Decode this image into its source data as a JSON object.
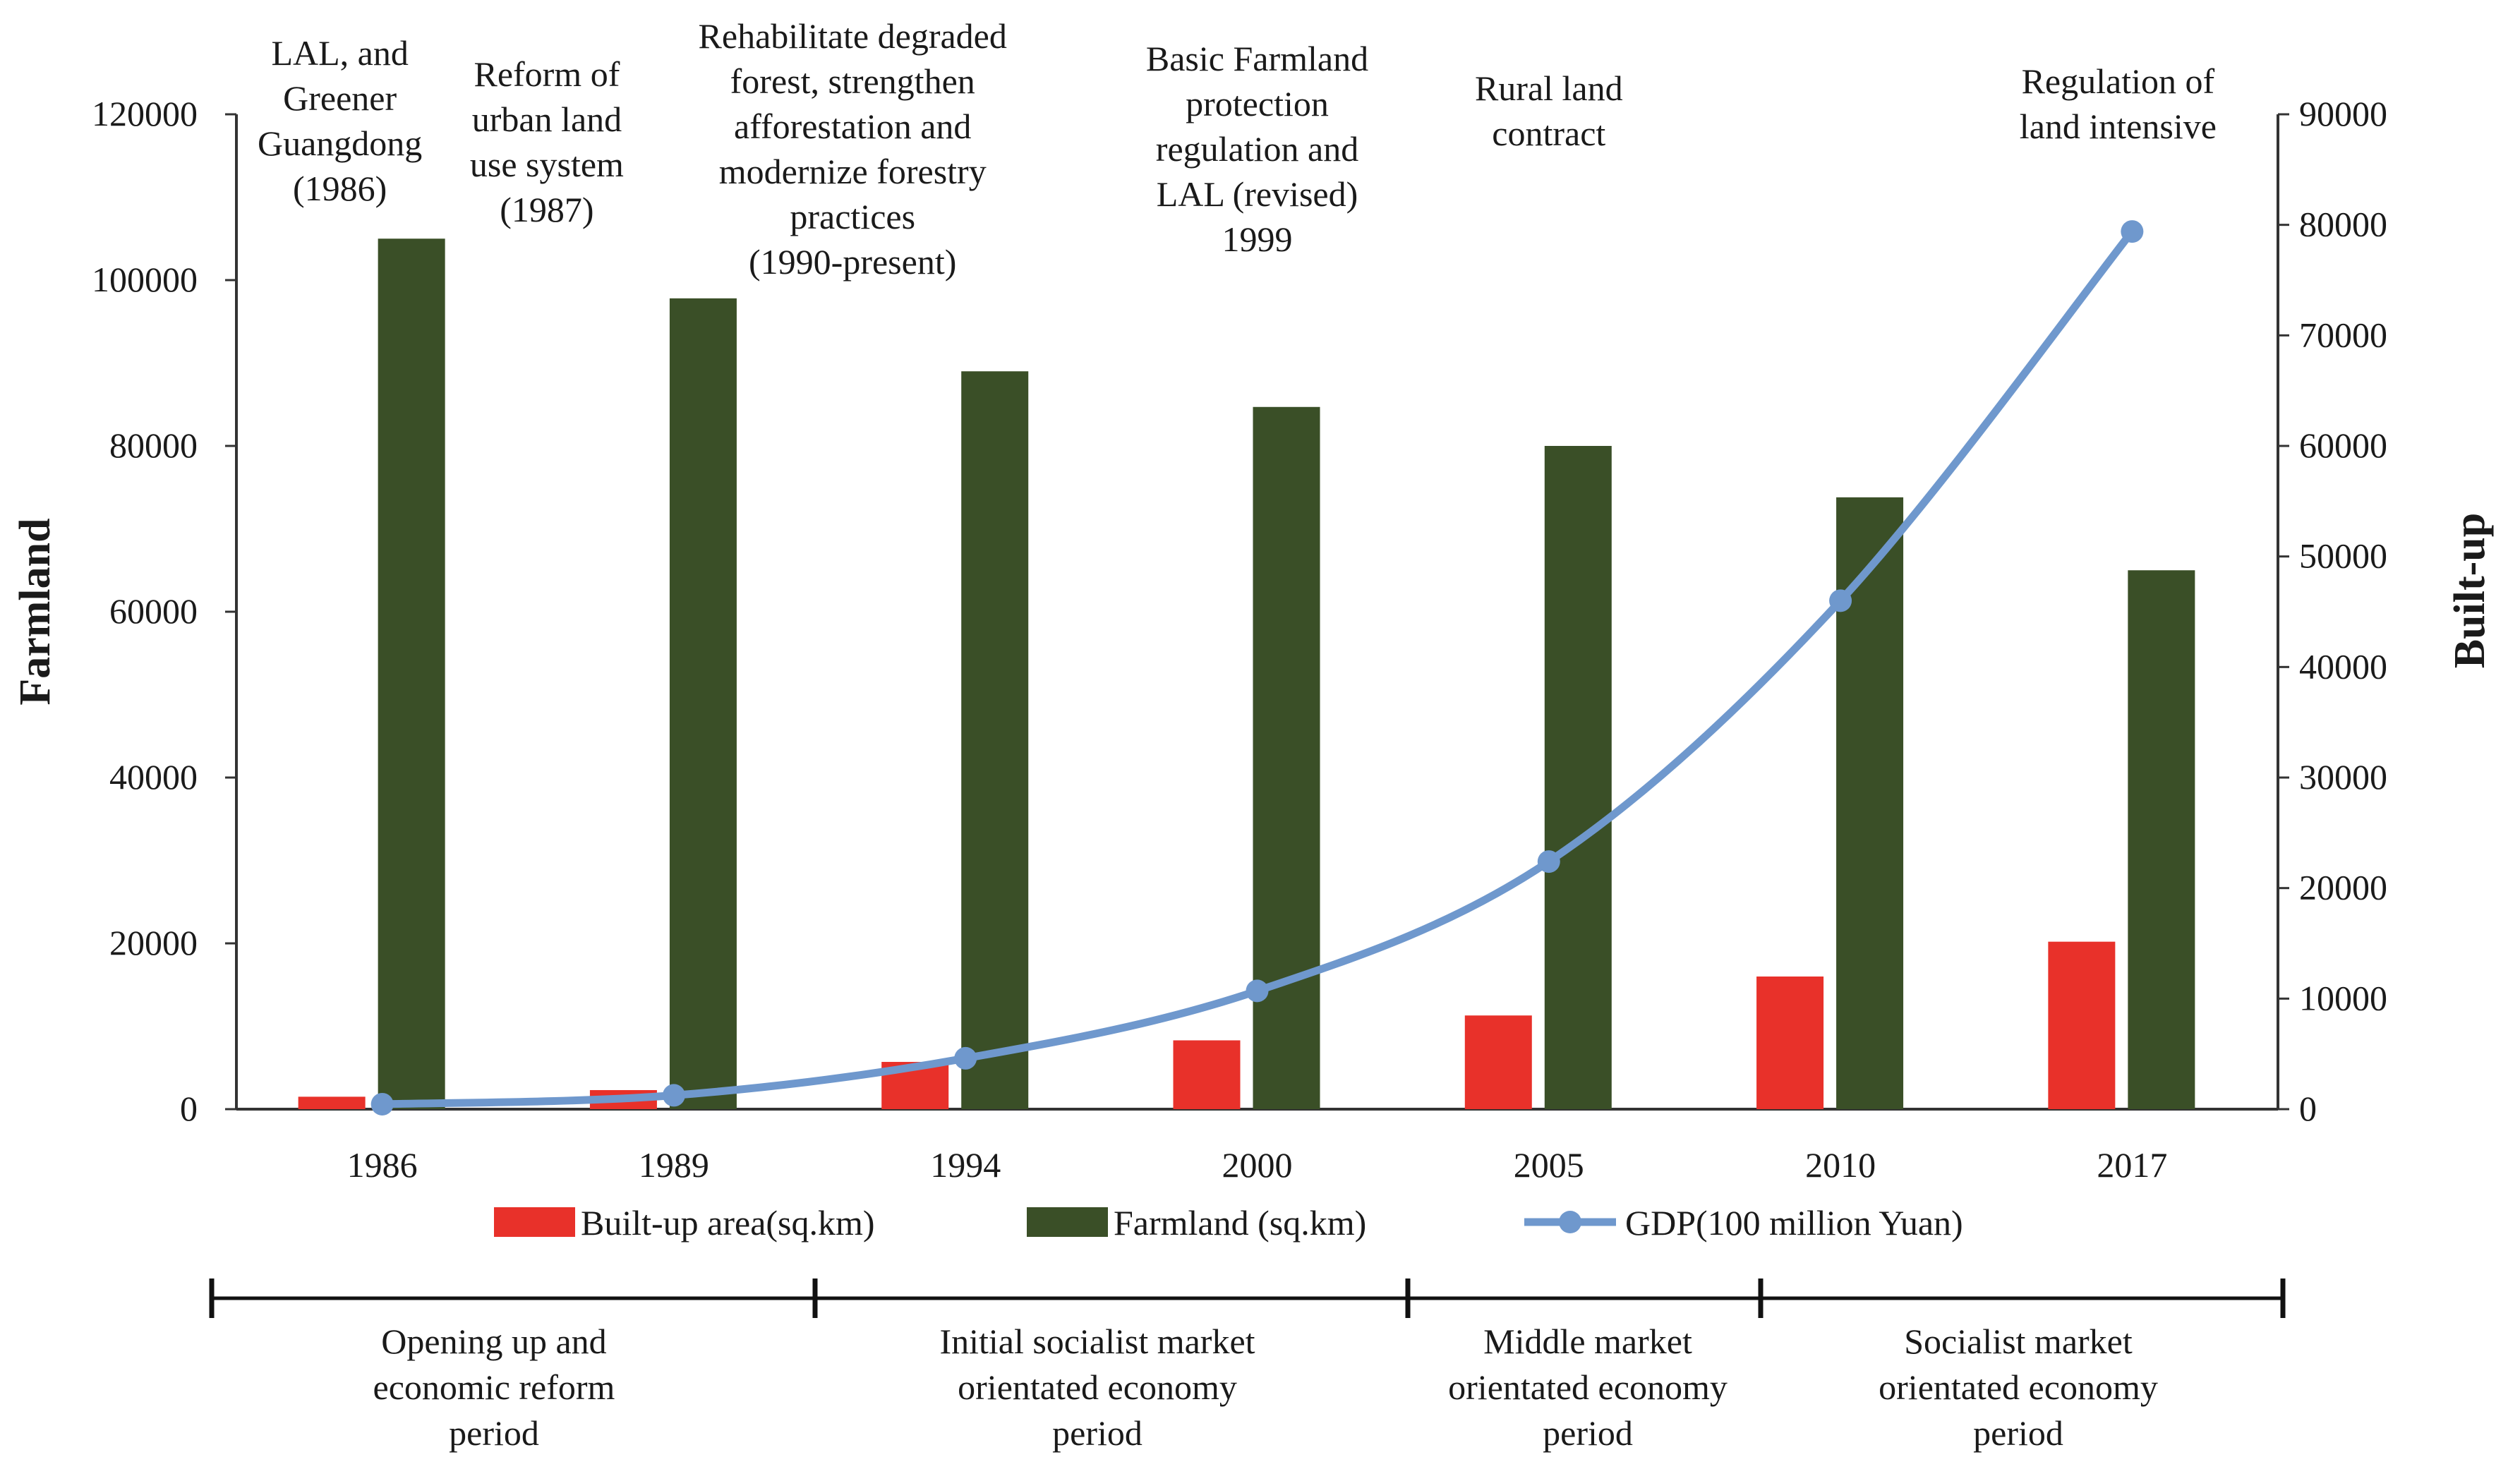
{
  "chart_data": {
    "type": "bar",
    "categories": [
      "1986",
      "1989",
      "1994",
      "2000",
      "2005",
      "2010",
      "2017"
    ],
    "series": [
      {
        "name": "Built-up area(sq.km)",
        "type": "bar",
        "axis": "left",
        "color": "#e8312a",
        "values": [
          1500,
          2300,
          5700,
          8300,
          11300,
          16000,
          20200
        ]
      },
      {
        "name": "Farmland (sq.km)",
        "type": "bar",
        "axis": "left",
        "color": "#3a4f27",
        "values": [
          105000,
          97800,
          89000,
          84700,
          80000,
          73800,
          65000
        ]
      },
      {
        "name": "GDP(100 million Yuan)",
        "type": "line",
        "axis": "right",
        "color": "#6f98cd",
        "values": [
          450,
          1250,
          4600,
          10700,
          22400,
          46000,
          79400
        ]
      }
    ],
    "ylabel_left": "Farmland",
    "ylabel_right": "Built-up",
    "ylim_left": [
      0,
      120000
    ],
    "ylim_right": [
      0,
      90000
    ],
    "yticks_left": [
      "0",
      "20000",
      "40000",
      "60000",
      "80000",
      "100000",
      "120000"
    ],
    "yticks_right": [
      "0",
      "10000",
      "20000",
      "30000",
      "40000",
      "50000",
      "60000",
      "70000",
      "80000",
      "90000"
    ],
    "grid": false,
    "legend_position": "bottom",
    "annotations": [
      {
        "category": "1986",
        "lines": [
          "LAL, and",
          "Greener",
          "Guangdong",
          "(1986)"
        ]
      },
      {
        "category": "1989",
        "lines": [
          "Reform of",
          "urban land",
          "use system",
          "(1987)"
        ]
      },
      {
        "category": "1994",
        "lines": [
          "Rehabilitate degraded",
          "forest, strengthen",
          "afforestation and",
          "modernize forestry",
          "practices",
          "(1990-present)"
        ]
      },
      {
        "category": "2000",
        "lines": [
          "Basic Farmland",
          "protection",
          "regulation and",
          "LAL (revised)",
          "1999"
        ]
      },
      {
        "category": "2005",
        "lines": [
          "Rural land",
          "contract"
        ]
      },
      {
        "category": "2017",
        "lines": [
          "Regulation of",
          "land intensive"
        ]
      }
    ],
    "periods": [
      {
        "lines": [
          "Opening up and",
          "economic reform",
          "period"
        ]
      },
      {
        "lines": [
          "Initial socialist market",
          "orientated economy",
          "period"
        ]
      },
      {
        "lines": [
          "Middle market",
          "orientated economy",
          "period"
        ]
      },
      {
        "lines": [
          "Socialist market",
          "orientated economy",
          "period"
        ]
      }
    ]
  }
}
